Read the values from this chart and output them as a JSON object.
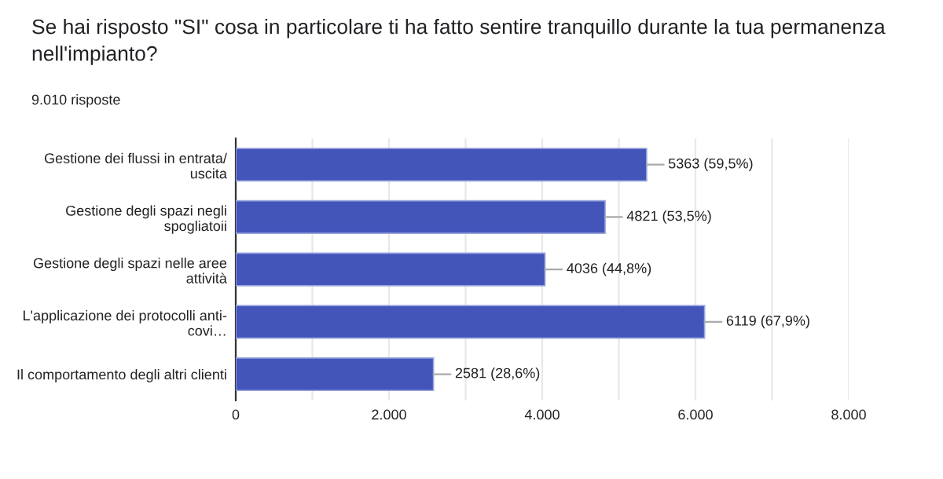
{
  "chart_data": {
    "type": "bar",
    "orientation": "horizontal",
    "title": "Se hai risposto \"SI\" cosa in particolare ti ha fatto sentire tranquillo durante la tua permanenza\nnell'impianto?",
    "subtitle": "9.010 risposte",
    "categories": [
      "Gestione dei flussi in entrata/\nuscita",
      "Gestione degli spazi negli\nspogliatoii",
      "Gestione degli spazi nelle aree\nattività",
      "L'applicazione dei protocolli anti-\ncovi…",
      "Il comportamento degli altri clienti"
    ],
    "values": [
      5363,
      4821,
      4036,
      6119,
      2581
    ],
    "value_labels": [
      "5363 (59,5%)",
      "4821 (53,5%)",
      "4036 (44,8%)",
      "6119 (67,9%)",
      "2581 (28,6%)"
    ],
    "color": "#4355b9",
    "xlim": [
      0,
      8000
    ],
    "xticks": [
      0,
      {
        "value": 1000,
        "label": null
      },
      {
        "value": 2000,
        "label": "2.000"
      },
      {
        "value": 3000,
        "label": null
      },
      {
        "value": 4000,
        "label": "4.000"
      },
      {
        "value": 5000,
        "label": null
      },
      {
        "value": 6000,
        "label": "6.000"
      },
      {
        "value": 7000,
        "label": null
      },
      {
        "value": 8000,
        "label": "8.000"
      }
    ],
    "grid": "x",
    "legend": false
  }
}
